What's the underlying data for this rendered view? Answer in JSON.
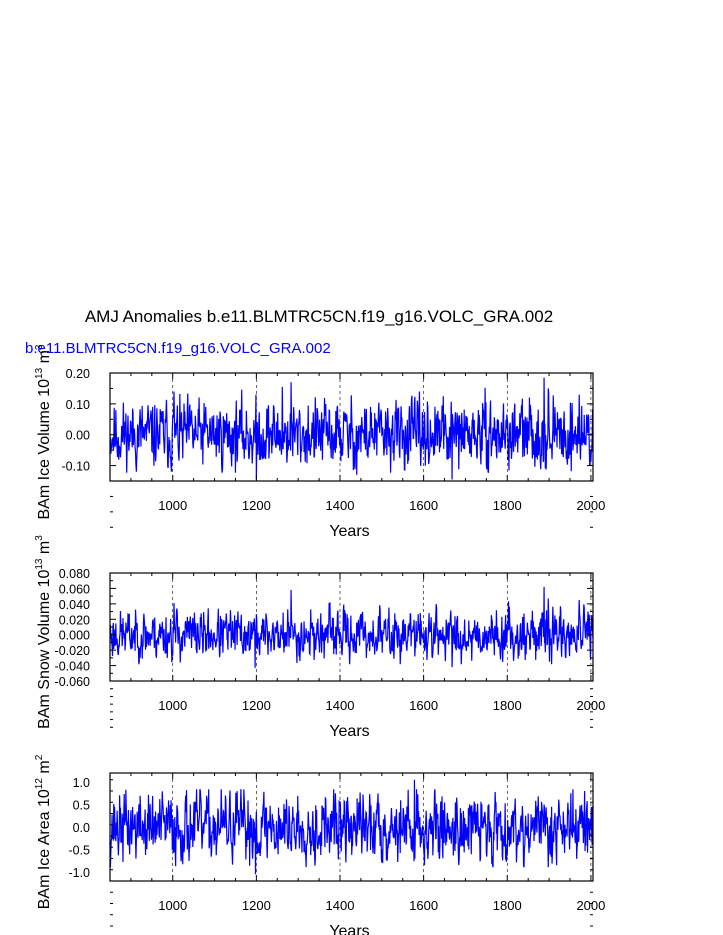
{
  "title": "AMJ Anomalies b.e11.BLMTRC5CN.f19_g16.VOLC_GRA.002",
  "subtitle": "b.e11.BLMTRC5CN.f19_g16.VOLC_GRA.002",
  "colors": {
    "series": "#0000ff",
    "axis": "#000000",
    "grid": "#000000",
    "subtitle": "#0000ff"
  },
  "chart_data": [
    {
      "type": "line",
      "ylabel_main": "BAm Ice Volume 10",
      "ylabel_exp": "13",
      "ylabel_unit": " m",
      "ylabel_unit_exp": "3",
      "xlabel": "Years",
      "xlim": [
        850,
        2005
      ],
      "ylim": [
        -0.15,
        0.2
      ],
      "xticks": [
        1000,
        1200,
        1400,
        1600,
        1800,
        2000
      ],
      "xtick_labels": [
        "1000",
        "1200",
        "1400",
        "1600",
        "1800",
        "2000"
      ],
      "yticks": [
        -0.1,
        0.0,
        0.1,
        0.2
      ],
      "ytick_labels": [
        "-0.10",
        "0.00",
        "0.10",
        "0.20"
      ],
      "vgrid": [
        1000,
        1200,
        1400,
        1600,
        1800,
        2000
      ],
      "series": [
        {
          "x_start": 850,
          "x_end": 2005,
          "amp": 0.045,
          "min": -0.145,
          "max": 0.19,
          "seed": 11,
          "peaks": [
            [
              1003,
              0.14
            ],
            [
              1200,
              -0.145
            ],
            [
              1262,
              0.155
            ],
            [
              1283,
              0.17
            ],
            [
              1440,
              -0.13
            ],
            [
              1668,
              -0.145
            ],
            [
              1888,
              0.185
            ],
            [
              1898,
              0.15
            ],
            [
              1972,
              0.13
            ]
          ]
        }
      ]
    },
    {
      "type": "line",
      "ylabel_main": "BAm Snow Volume 10",
      "ylabel_exp": "13",
      "ylabel_unit": " m",
      "ylabel_unit_exp": "3",
      "xlabel": "Years",
      "xlim": [
        850,
        2005
      ],
      "ylim": [
        -0.06,
        0.08
      ],
      "xticks": [
        1000,
        1200,
        1400,
        1600,
        1800,
        2000
      ],
      "xtick_labels": [
        "1000",
        "1200",
        "1400",
        "1600",
        "1800",
        "2000"
      ],
      "yticks": [
        -0.06,
        -0.04,
        -0.02,
        0.0,
        0.02,
        0.04,
        0.06,
        0.08
      ],
      "ytick_labels": [
        "-0.060",
        "-0.040",
        "-0.020",
        "0.000",
        "0.020",
        "0.040",
        "0.060",
        "0.080"
      ],
      "vgrid": [
        1000,
        1200,
        1400,
        1600,
        1800,
        2000
      ],
      "series": [
        {
          "x_start": 850,
          "x_end": 2005,
          "amp": 0.013,
          "min": -0.045,
          "max": 0.062,
          "seed": 23,
          "peaks": [
            [
              1003,
              0.041
            ],
            [
              1197,
              -0.043
            ],
            [
              1283,
              0.058
            ],
            [
              1668,
              -0.042
            ],
            [
              1888,
              0.062
            ],
            [
              1898,
              0.047
            ],
            [
              1972,
              0.045
            ]
          ]
        }
      ]
    },
    {
      "type": "line",
      "ylabel_main": "BAm Ice Area 10",
      "ylabel_exp": "12",
      "ylabel_unit": " m",
      "ylabel_unit_exp": "2",
      "xlabel": "Years",
      "xlim": [
        850,
        2005
      ],
      "ylim": [
        -1.2,
        1.2
      ],
      "xticks": [
        1000,
        1200,
        1400,
        1600,
        1800,
        2000
      ],
      "xtick_labels": [
        "1000",
        "1200",
        "1400",
        "1600",
        "1800",
        "2000"
      ],
      "yticks": [
        -1.0,
        -0.5,
        0.0,
        0.5,
        1.0
      ],
      "ytick_labels": [
        "-1.0",
        "-0.5",
        "0.0",
        "0.5",
        "1.0"
      ],
      "vgrid": [
        1000,
        1200,
        1400,
        1600,
        1800,
        2000
      ],
      "series": [
        {
          "x_start": 850,
          "x_end": 2005,
          "amp": 0.32,
          "min": -1.05,
          "max": 1.05,
          "seed": 37,
          "peaks": [
            [
              1198,
              -1.05
            ],
            [
              1578,
              1.05
            ],
            [
              1602,
              -0.85
            ],
            [
              1918,
              -0.85
            ],
            [
              1985,
              0.8
            ]
          ]
        }
      ]
    }
  ]
}
